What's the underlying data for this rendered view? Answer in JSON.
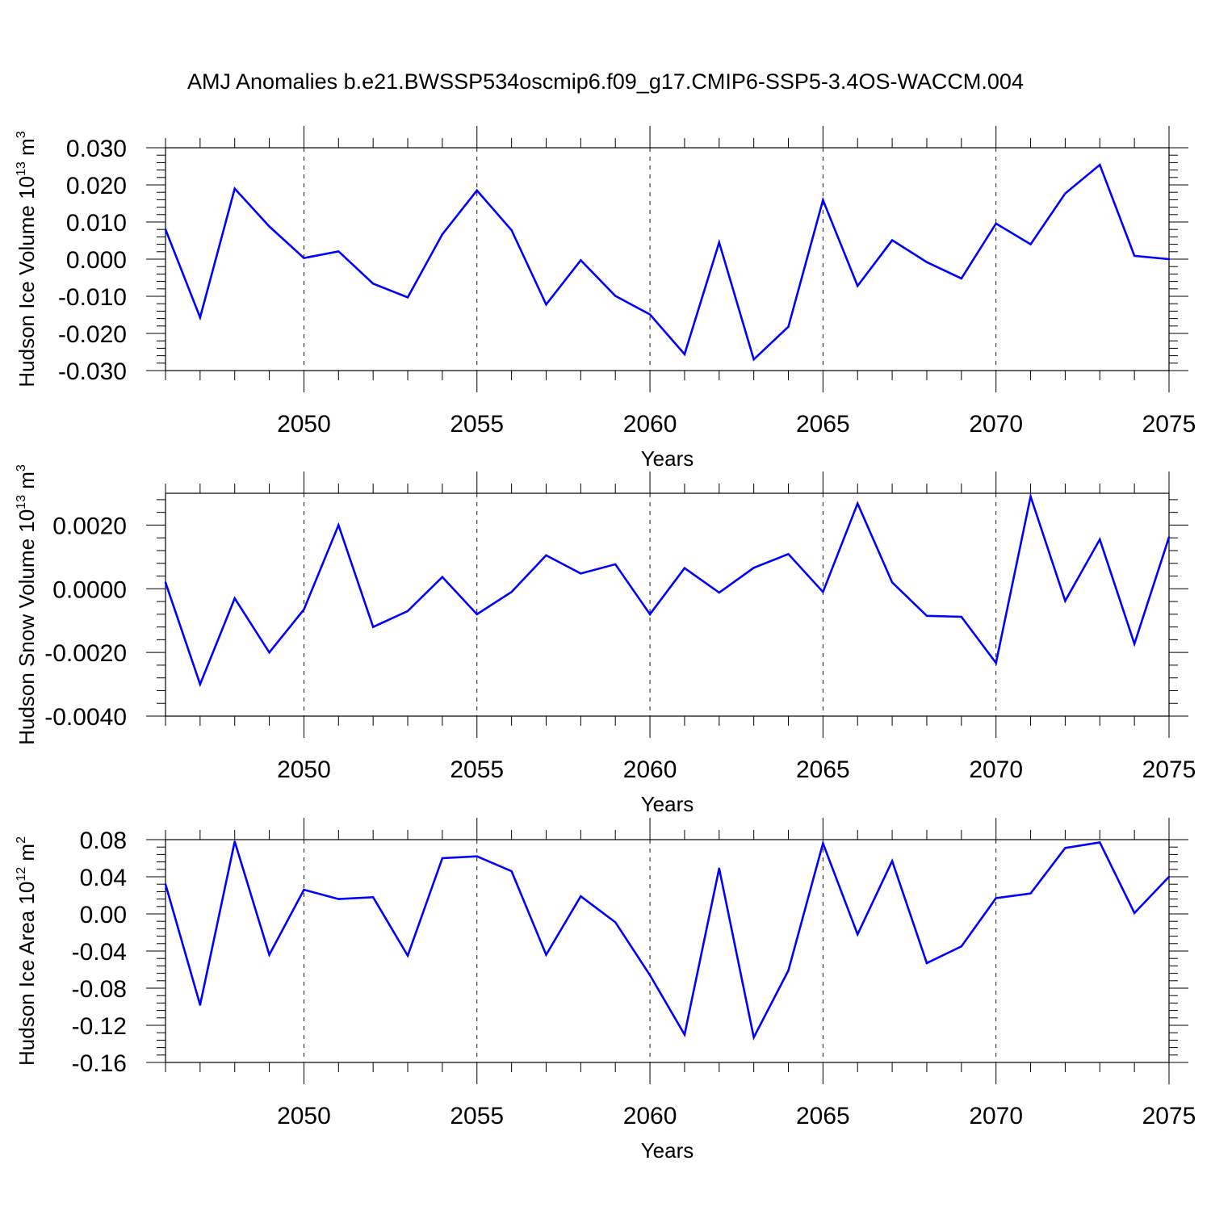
{
  "title": "AMJ Anomalies b.e21.BWSSP534oscmip6.f09_g17.CMIP6-SSP5-3.4OS-WACCM.004",
  "chart_data": [
    {
      "type": "line",
      "xlabel": "Years",
      "ylabel": {
        "main": "Hudson Ice Volume 10",
        "exp": "13",
        "unit": " m",
        "unit_exp": "3"
      },
      "xlim": [
        2046,
        2075
      ],
      "ylim": [
        -0.03,
        0.03
      ],
      "x_ticks": [
        "2050",
        "2055",
        "2060",
        "2065",
        "2070",
        "2075"
      ],
      "y_ticks": [
        "-0.030",
        "-0.020",
        "-0.010",
        "0.000",
        "0.010",
        "0.020",
        "0.030"
      ],
      "color": "#0000ff",
      "x": [
        2046,
        2047,
        2048,
        2049,
        2050,
        2051,
        2052,
        2053,
        2054,
        2055,
        2056,
        2057,
        2058,
        2059,
        2060,
        2061,
        2062,
        2063,
        2064,
        2065,
        2066,
        2067,
        2068,
        2069,
        2070,
        2071,
        2072,
        2073,
        2074,
        2075
      ],
      "values": [
        0.008,
        -0.0157,
        0.019,
        0.0088,
        0.0003,
        0.0021,
        -0.0066,
        -0.0103,
        0.0067,
        0.0185,
        0.0078,
        -0.0122,
        -0.0003,
        -0.0099,
        -0.0149,
        -0.0256,
        0.0045,
        -0.027,
        -0.0182,
        0.0159,
        -0.0072,
        0.0051,
        -0.0008,
        -0.0052,
        0.0096,
        0.004,
        0.0177,
        0.0254,
        0.0009,
        0.0
      ]
    },
    {
      "type": "line",
      "xlabel": "Years",
      "ylabel": {
        "main": "Hudson Snow Volume 10",
        "exp": "13",
        "unit": " m",
        "unit_exp": "3"
      },
      "xlim": [
        2046,
        2075
      ],
      "ylim": [
        -0.004,
        0.003
      ],
      "x_ticks": [
        "2050",
        "2055",
        "2060",
        "2065",
        "2070",
        "2075"
      ],
      "y_ticks": [
        "-0.0040",
        "-0.0020",
        "0.0000",
        "0.0020"
      ],
      "color": "#0000ff",
      "x": [
        2046,
        2047,
        2048,
        2049,
        2050,
        2051,
        2052,
        2053,
        2054,
        2055,
        2056,
        2057,
        2058,
        2059,
        2060,
        2061,
        2062,
        2063,
        2064,
        2065,
        2066,
        2067,
        2068,
        2069,
        2070,
        2071,
        2072,
        2073,
        2074,
        2075
      ],
      "values": [
        0.0002,
        -0.003,
        -0.0003,
        -0.002,
        -0.00065,
        0.002,
        -0.0012,
        -0.0007,
        0.00037,
        -0.0008,
        -0.0001,
        0.00105,
        0.00048,
        0.00077,
        -0.0008,
        0.00065,
        -0.00012,
        0.00066,
        0.00109,
        -0.0001,
        0.00268,
        0.0002,
        -0.00085,
        -0.00088,
        -0.00233,
        0.0029,
        -0.00038,
        0.00155,
        -0.00173,
        0.00162
      ]
    },
    {
      "type": "line",
      "xlabel": "Years",
      "ylabel": {
        "main": "Hudson Ice Area 10",
        "exp": "12",
        "unit": " m",
        "unit_exp": "2"
      },
      "xlim": [
        2046,
        2075
      ],
      "ylim": [
        -0.16,
        0.08
      ],
      "x_ticks": [
        "2050",
        "2055",
        "2060",
        "2065",
        "2070",
        "2075"
      ],
      "y_ticks": [
        "-0.16",
        "-0.12",
        "-0.08",
        "-0.04",
        "0.00",
        "0.04",
        "0.08"
      ],
      "color": "#0000ff",
      "x": [
        2046,
        2047,
        2048,
        2049,
        2050,
        2051,
        2052,
        2053,
        2054,
        2055,
        2056,
        2057,
        2058,
        2059,
        2060,
        2061,
        2062,
        2063,
        2064,
        2065,
        2066,
        2067,
        2068,
        2069,
        2070,
        2071,
        2072,
        2073,
        2074,
        2075
      ],
      "values": [
        0.032,
        -0.098,
        0.078,
        -0.044,
        0.026,
        0.016,
        0.018,
        -0.045,
        0.06,
        0.062,
        0.046,
        -0.044,
        0.019,
        -0.009,
        -0.066,
        -0.13,
        0.049,
        -0.133,
        -0.061,
        0.076,
        -0.022,
        0.057,
        -0.053,
        -0.035,
        0.017,
        0.022,
        0.071,
        0.077,
        0.001,
        0.04
      ]
    }
  ]
}
